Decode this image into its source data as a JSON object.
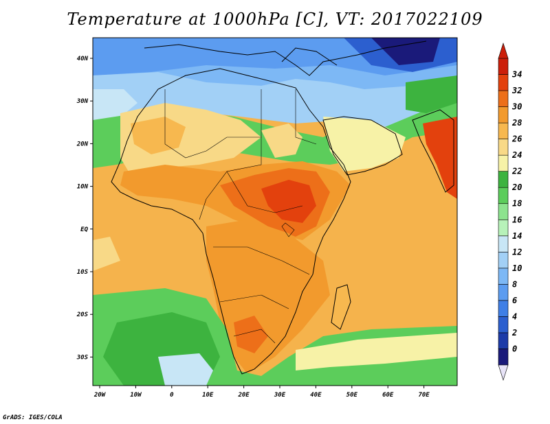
{
  "title": "Temperature at 1000hPa [C], VT: 2017022109",
  "credit": "GrADS: IGES/COLA",
  "map": {
    "lon_labels": [
      "20W",
      "10W",
      "0",
      "10E",
      "20E",
      "30E",
      "40E",
      "50E",
      "60E",
      "70E"
    ],
    "lat_labels": [
      "40N",
      "30N",
      "20N",
      "10N",
      "EQ",
      "10S",
      "20S",
      "30S"
    ]
  },
  "colorbar": {
    "labels": [
      "0",
      "2",
      "4",
      "6",
      "8",
      "10",
      "12",
      "14",
      "16",
      "18",
      "20",
      "22",
      "24",
      "26",
      "28",
      "30",
      "32",
      "34"
    ],
    "colors": [
      "#1a1a7a",
      "#1c3ba8",
      "#2c5fcf",
      "#3f7fe6",
      "#5c9cf0",
      "#7db8f5",
      "#a2d0f6",
      "#c8e6f6",
      "#b7f2b9",
      "#8de38e",
      "#5ccd5b",
      "#3db33f",
      "#f7f2a7",
      "#f8d987",
      "#f7b84f",
      "#f29a2d",
      "#ed6f19",
      "#e3410d",
      "#cc1f0a"
    ]
  }
}
